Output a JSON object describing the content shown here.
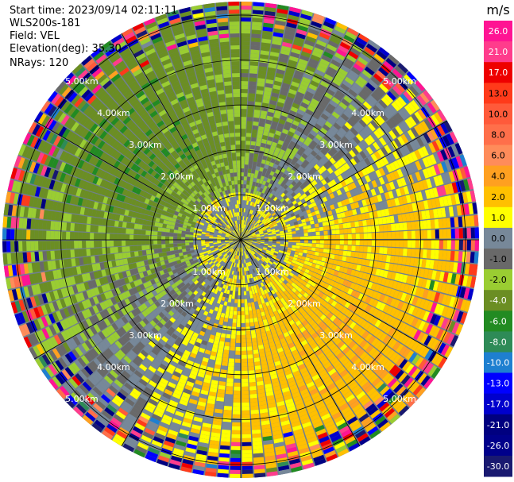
{
  "header": {
    "start_time": "Start time: 2023/09/14 02:11:11",
    "instrument": "WLS200s-181",
    "field": "Field: VEL",
    "elevation": "Elevation(deg): 35.30",
    "nrays": "NRays: 120"
  },
  "chart_data": {
    "type": "heatmap",
    "projection": "polar-ppi",
    "field": "VEL",
    "units_label": "m/s",
    "nrays": 120,
    "max_range_km": 5.3,
    "range_rings_km": [
      1,
      2,
      3,
      4,
      5
    ],
    "ring_labels": [
      "1.00km",
      "2.00km",
      "3.00km",
      "4.00km",
      "5.00km"
    ],
    "colorbar": {
      "ticks": [
        "26.0",
        "21.0",
        "17.0",
        "13.0",
        "10.0",
        "8.0",
        "6.0",
        "4.0",
        "2.0",
        "1.0",
        "0.0",
        "-1.0",
        "-2.0",
        "-4.0",
        "-6.0",
        "-8.0",
        "-10.0",
        "-13.0",
        "-17.0",
        "-21.0",
        "-26.0",
        "-30.0"
      ],
      "bins": [
        {
          "lo": 26,
          "hi": 30,
          "color": "#ff1493"
        },
        {
          "lo": 21,
          "hi": 26,
          "color": "#ff3c8c"
        },
        {
          "lo": 17,
          "hi": 21,
          "color": "#ee0000"
        },
        {
          "lo": 13,
          "hi": 17,
          "color": "#ff3a1a"
        },
        {
          "lo": 10,
          "hi": 13,
          "color": "#ff5a3a"
        },
        {
          "lo": 8,
          "hi": 10,
          "color": "#ff6f4a"
        },
        {
          "lo": 6,
          "hi": 8,
          "color": "#ff8c5a"
        },
        {
          "lo": 4,
          "hi": 6,
          "color": "#ffa020"
        },
        {
          "lo": 2,
          "hi": 4,
          "color": "#ffc000"
        },
        {
          "lo": 1,
          "hi": 2,
          "color": "#ffff00"
        },
        {
          "lo": 0,
          "hi": 1,
          "color": "#778899"
        },
        {
          "lo": -1,
          "hi": 0,
          "color": "#696969"
        },
        {
          "lo": -2,
          "hi": -1,
          "color": "#9acd32"
        },
        {
          "lo": -4,
          "hi": -2,
          "color": "#6b8e23"
        },
        {
          "lo": -6,
          "hi": -4,
          "color": "#228b22"
        },
        {
          "lo": -8,
          "hi": -6,
          "color": "#2e8b57"
        },
        {
          "lo": -10,
          "hi": -8,
          "color": "#1e7fd0"
        },
        {
          "lo": -13,
          "hi": -10,
          "color": "#0000ff"
        },
        {
          "lo": -17,
          "hi": -13,
          "color": "#0000cd"
        },
        {
          "lo": -21,
          "hi": -17,
          "color": "#000080"
        },
        {
          "lo": -26,
          "hi": -21,
          "color": "#00008b"
        },
        {
          "lo": -30,
          "hi": -26,
          "color": "#191970"
        }
      ]
    }
  }
}
